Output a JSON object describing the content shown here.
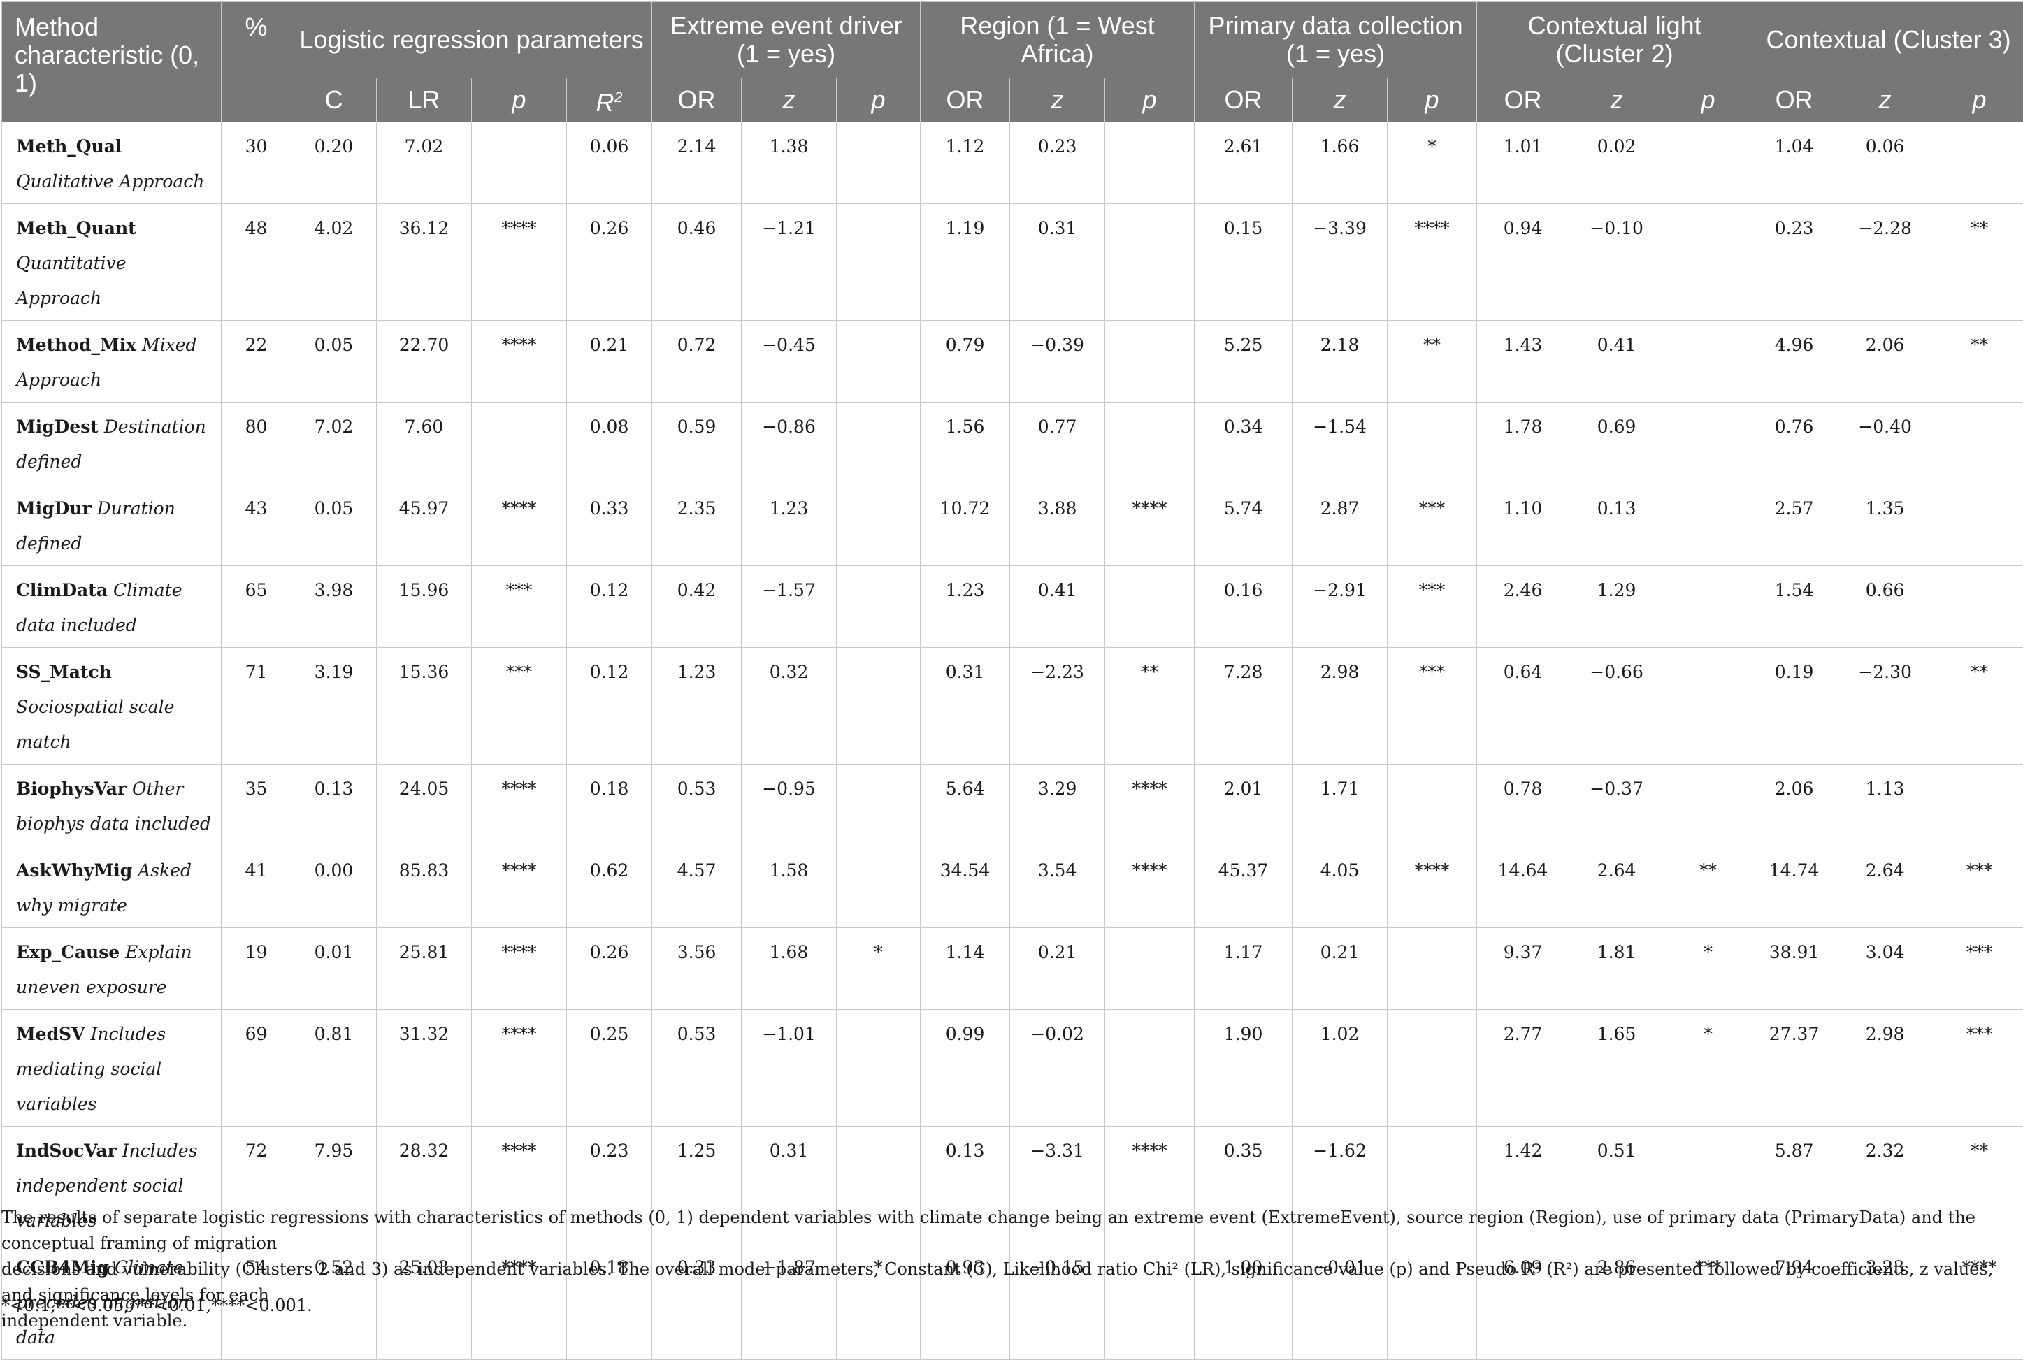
{
  "table": {
    "first_column_header": "Method characteristic (0, 1)",
    "percent_header": "%",
    "groups": [
      {
        "label": "Logistic regression parameters",
        "subheaders": [
          "C",
          "LR",
          "p",
          "R2"
        ]
      },
      {
        "label": "Extreme event driver (1 = yes)",
        "subheaders": [
          "OR",
          "z",
          "p"
        ]
      },
      {
        "label": "Region (1 = West Africa)",
        "subheaders": [
          "OR",
          "z",
          "p"
        ]
      },
      {
        "label": "Primary data collection (1 = yes)",
        "subheaders": [
          "OR",
          "z",
          "p"
        ]
      },
      {
        "label": "Contextual light (Cluster 2)",
        "subheaders": [
          "OR",
          "z",
          "p"
        ]
      },
      {
        "label": "Contextual (Cluster 3)",
        "subheaders": [
          "OR",
          "z",
          "p"
        ]
      }
    ],
    "rows": [
      {
        "code": "Meth_Qual",
        "desc": "Qualitative Approach",
        "cells": [
          "30",
          "0.20",
          "7.02",
          "",
          "0.06",
          "2.14",
          "1.38",
          "",
          "1.12",
          "0.23",
          "",
          "2.61",
          "1.66",
          "*",
          "1.01",
          "0.02",
          "",
          "1.04",
          "0.06",
          ""
        ]
      },
      {
        "code": "Meth_Quant",
        "desc": "Quantitative Approach",
        "cells": [
          "48",
          "4.02",
          "36.12",
          "****",
          "0.26",
          "0.46",
          "−1.21",
          "",
          "1.19",
          "0.31",
          "",
          "0.15",
          "−3.39",
          "****",
          "0.94",
          "−0.10",
          "",
          "0.23",
          "−2.28",
          "**"
        ]
      },
      {
        "code": "Method_Mix",
        "desc": "Mixed Approach",
        "cells": [
          "22",
          "0.05",
          "22.70",
          "****",
          "0.21",
          "0.72",
          "−0.45",
          "",
          "0.79",
          "−0.39",
          "",
          "5.25",
          "2.18",
          "**",
          "1.43",
          "0.41",
          "",
          "4.96",
          "2.06",
          "**"
        ]
      },
      {
        "code": "MigDest",
        "desc": "Destination defined",
        "cells": [
          "80",
          "7.02",
          "7.60",
          "",
          "0.08",
          "0.59",
          "−0.86",
          "",
          "1.56",
          "0.77",
          "",
          "0.34",
          "−1.54",
          "",
          "1.78",
          "0.69",
          "",
          "0.76",
          "−0.40",
          ""
        ]
      },
      {
        "code": "MigDur",
        "desc": "Duration defined",
        "cells": [
          "43",
          "0.05",
          "45.97",
          "****",
          "0.33",
          "2.35",
          "1.23",
          "",
          "10.72",
          "3.88",
          "****",
          "5.74",
          "2.87",
          "***",
          "1.10",
          "0.13",
          "",
          "2.57",
          "1.35",
          ""
        ]
      },
      {
        "code": "ClimData",
        "desc": "Climate data included",
        "cells": [
          "65",
          "3.98",
          "15.96",
          "***",
          "0.12",
          "0.42",
          "−1.57",
          "",
          "1.23",
          "0.41",
          "",
          "0.16",
          "−2.91",
          "***",
          "2.46",
          "1.29",
          "",
          "1.54",
          "0.66",
          ""
        ]
      },
      {
        "code": "SS_Match",
        "desc": "Sociospatial scale match",
        "cells": [
          "71",
          "3.19",
          "15.36",
          "***",
          "0.12",
          "1.23",
          "0.32",
          "",
          "0.31",
          "−2.23",
          "**",
          "7.28",
          "2.98",
          "***",
          "0.64",
          "−0.66",
          "",
          "0.19",
          "−2.30",
          "**"
        ]
      },
      {
        "code": "BiophysVar",
        "desc": "Other biophys data included",
        "cells": [
          "35",
          "0.13",
          "24.05",
          "****",
          "0.18",
          "0.53",
          "−0.95",
          "",
          "5.64",
          "3.29",
          "****",
          "2.01",
          "1.71",
          "",
          "0.78",
          "−0.37",
          "",
          "2.06",
          "1.13",
          ""
        ]
      },
      {
        "code": "AskWhyMig",
        "desc": "Asked why migrate",
        "cells": [
          "41",
          "0.00",
          "85.83",
          "****",
          "0.62",
          "4.57",
          "1.58",
          "",
          "34.54",
          "3.54",
          "****",
          "45.37",
          "4.05",
          "****",
          "14.64",
          "2.64",
          "**",
          "14.74",
          "2.64",
          "***"
        ]
      },
      {
        "code": "Exp_Cause",
        "desc": "Explain uneven exposure",
        "cells": [
          "19",
          "0.01",
          "25.81",
          "****",
          "0.26",
          "3.56",
          "1.68",
          "*",
          "1.14",
          "0.21",
          "",
          "1.17",
          "0.21",
          "",
          "9.37",
          "1.81",
          "*",
          "38.91",
          "3.04",
          "***"
        ]
      },
      {
        "code": "MedSV",
        "desc": "Includes mediating social variables",
        "cells": [
          "69",
          "0.81",
          "31.32",
          "****",
          "0.25",
          "0.53",
          "−1.01",
          "",
          "0.99",
          "−0.02",
          "",
          "1.90",
          "1.02",
          "",
          "2.77",
          "1.65",
          "*",
          "27.37",
          "2.98",
          "***"
        ]
      },
      {
        "code": "IndSocVar",
        "desc": "Includes independent social variables",
        "cells": [
          "72",
          "7.95",
          "28.32",
          "****",
          "0.23",
          "1.25",
          "0.31",
          "",
          "0.13",
          "−3.31",
          "****",
          "0.35",
          "−1.62",
          "",
          "1.42",
          "0.51",
          "",
          "5.87",
          "2.32",
          "**"
        ]
      },
      {
        "code": "CCB4Mig",
        "desc": "Climate precedes migration data",
        "cells": [
          "54",
          "0.52",
          "25.03",
          "****",
          "0.18",
          "0.33",
          "−1.87",
          "*",
          "0.93",
          "−0.15",
          "",
          "1.00",
          "−0.01",
          "",
          "6.09",
          "2.86",
          "***",
          "7.94",
          "3.23",
          "****"
        ]
      }
    ]
  },
  "caption": {
    "line1": "The results of separate logistic regressions with characteristics of methods (0, 1) dependent variables with climate change being an extreme event (ExtremeEvent), source region (Region), use of primary data (PrimaryData) and the conceptual framing of migration",
    "line2": "decisions and vulnerability (Clusters 2 and 3) as independent variables. The overall model parameters, Constant (C), Likelihood ratio Chi² (LR), significance value (p) and Pseudo R² (R²) are presented followed by coefficients, z values, and significance levels for each",
    "line3": "independent variable."
  },
  "footnote": "*<0.1,**<0.05,***<0.01,****<0.001."
}
